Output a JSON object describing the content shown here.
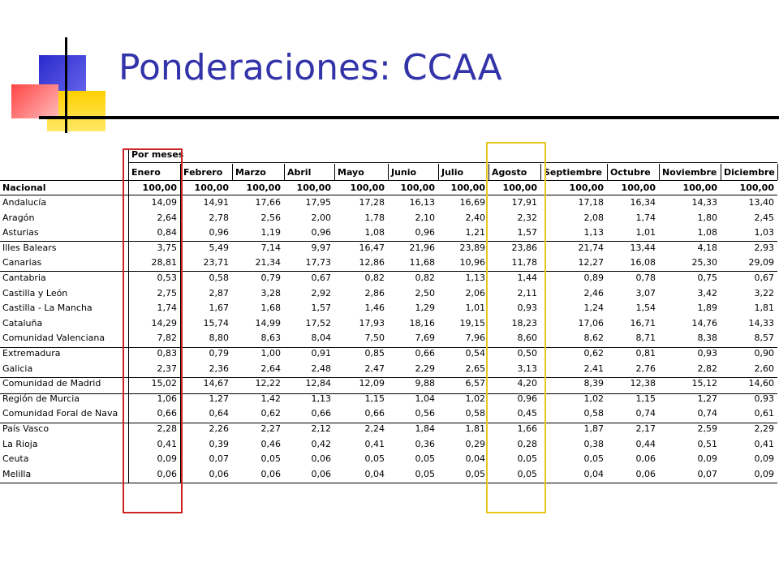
{
  "title": "Ponderaciones: CCAA",
  "table": {
    "group_header": "Por meses",
    "row_header": "",
    "months": [
      "Enero",
      "Febrero",
      "Marzo",
      "Abril",
      "Mayo",
      "Junio",
      "Julio",
      "Agosto",
      "Septiembre",
      "Octubre",
      "Noviembre",
      "Diciembre"
    ],
    "rows": [
      {
        "name": "Nacional",
        "values": [
          "100,00",
          "100,00",
          "100,00",
          "100,00",
          "100,00",
          "100,00",
          "100,00",
          "100,00",
          "100,00",
          "100,00",
          "100,00",
          "100,00"
        ]
      },
      {
        "name": "Andalucía",
        "values": [
          "14,09",
          "14,91",
          "17,66",
          "17,95",
          "17,28",
          "16,13",
          "16,69",
          "17,91",
          "17,18",
          "16,34",
          "14,33",
          "13,40"
        ]
      },
      {
        "name": "Aragón",
        "values": [
          "2,64",
          "2,78",
          "2,56",
          "2,00",
          "1,78",
          "2,10",
          "2,40",
          "2,32",
          "2,08",
          "1,74",
          "1,80",
          "2,45"
        ]
      },
      {
        "name": "Asturias",
        "values": [
          "0,84",
          "0,96",
          "1,19",
          "0,96",
          "1,08",
          "0,96",
          "1,21",
          "1,57",
          "1,13",
          "1,01",
          "1,08",
          "1,03"
        ]
      },
      {
        "name": "Illes Balears",
        "values": [
          "3,75",
          "5,49",
          "7,14",
          "9,97",
          "16,47",
          "21,96",
          "23,89",
          "23,86",
          "21,74",
          "13,44",
          "4,18",
          "2,93"
        ]
      },
      {
        "name": "Canarias",
        "values": [
          "28,81",
          "23,71",
          "21,34",
          "17,73",
          "12,86",
          "11,68",
          "10,96",
          "11,78",
          "12,27",
          "16,08",
          "25,30",
          "29,09"
        ]
      },
      {
        "name": "Cantabria",
        "values": [
          "0,53",
          "0,58",
          "0,79",
          "0,67",
          "0,82",
          "0,82",
          "1,13",
          "1,44",
          "0,89",
          "0,78",
          "0,75",
          "0,67"
        ]
      },
      {
        "name": "Castilla y León",
        "values": [
          "2,75",
          "2,87",
          "3,28",
          "2,92",
          "2,86",
          "2,50",
          "2,06",
          "2,11",
          "2,46",
          "3,07",
          "3,42",
          "3,22"
        ]
      },
      {
        "name": "Castilla - La Mancha",
        "values": [
          "1,74",
          "1,67",
          "1,68",
          "1,57",
          "1,46",
          "1,29",
          "1,01",
          "0,93",
          "1,24",
          "1,54",
          "1,89",
          "1,81"
        ]
      },
      {
        "name": "Cataluña",
        "values": [
          "14,29",
          "15,74",
          "14,99",
          "17,52",
          "17,93",
          "18,16",
          "19,15",
          "18,23",
          "17,06",
          "16,71",
          "14,76",
          "14,33"
        ]
      },
      {
        "name": "Comunidad Valenciana",
        "values": [
          "7,82",
          "8,80",
          "8,63",
          "8,04",
          "7,50",
          "7,69",
          "7,96",
          "8,60",
          "8,62",
          "8,71",
          "8,38",
          "8,57"
        ]
      },
      {
        "name": "Extremadura",
        "values": [
          "0,83",
          "0,79",
          "1,00",
          "0,91",
          "0,85",
          "0,66",
          "0,54",
          "0,50",
          "0,62",
          "0,81",
          "0,93",
          "0,90"
        ]
      },
      {
        "name": "Galicia",
        "values": [
          "2,37",
          "2,36",
          "2,64",
          "2,48",
          "2,47",
          "2,29",
          "2,65",
          "3,13",
          "2,41",
          "2,76",
          "2,82",
          "2,60"
        ]
      },
      {
        "name": "Comunidad de Madrid",
        "values": [
          "15,02",
          "14,67",
          "12,22",
          "12,84",
          "12,09",
          "9,88",
          "6,57",
          "4,20",
          "8,39",
          "12,38",
          "15,12",
          "14,60"
        ]
      },
      {
        "name": "Región de Murcia",
        "values": [
          "1,06",
          "1,27",
          "1,42",
          "1,13",
          "1,15",
          "1,04",
          "1,02",
          "0,96",
          "1,02",
          "1,15",
          "1,27",
          "0,93"
        ]
      },
      {
        "name": "Comunidad Foral de Nava",
        "values": [
          "0,66",
          "0,64",
          "0,62",
          "0,66",
          "0,66",
          "0,56",
          "0,58",
          "0,45",
          "0,58",
          "0,74",
          "0,74",
          "0,61"
        ]
      },
      {
        "name": "País Vasco",
        "values": [
          "2,28",
          "2,26",
          "2,27",
          "2,12",
          "2,24",
          "1,84",
          "1,81",
          "1,66",
          "1,87",
          "2,17",
          "2,59",
          "2,29"
        ]
      },
      {
        "name": "La Rioja",
        "values": [
          "0,41",
          "0,39",
          "0,46",
          "0,42",
          "0,41",
          "0,36",
          "0,29",
          "0,28",
          "0,38",
          "0,44",
          "0,51",
          "0,41"
        ]
      },
      {
        "name": "Ceuta",
        "values": [
          "0,09",
          "0,07",
          "0,05",
          "0,06",
          "0,05",
          "0,05",
          "0,04",
          "0,05",
          "0,05",
          "0,06",
          "0,09",
          "0,09"
        ]
      },
      {
        "name": "Melilla",
        "values": [
          "0,06",
          "0,06",
          "0,06",
          "0,06",
          "0,04",
          "0,05",
          "0,05",
          "0,05",
          "0,04",
          "0,06",
          "0,07",
          "0,09"
        ]
      }
    ]
  },
  "highlights": [
    {
      "column": "Enero",
      "color": "#cc2222"
    },
    {
      "column": "Agosto",
      "color": "#e8c820"
    }
  ],
  "colors": {
    "title": "#3333aa",
    "deco_blue": "#3333cc",
    "deco_yellow": "#ffcc00",
    "deco_red": "#ff5555"
  }
}
